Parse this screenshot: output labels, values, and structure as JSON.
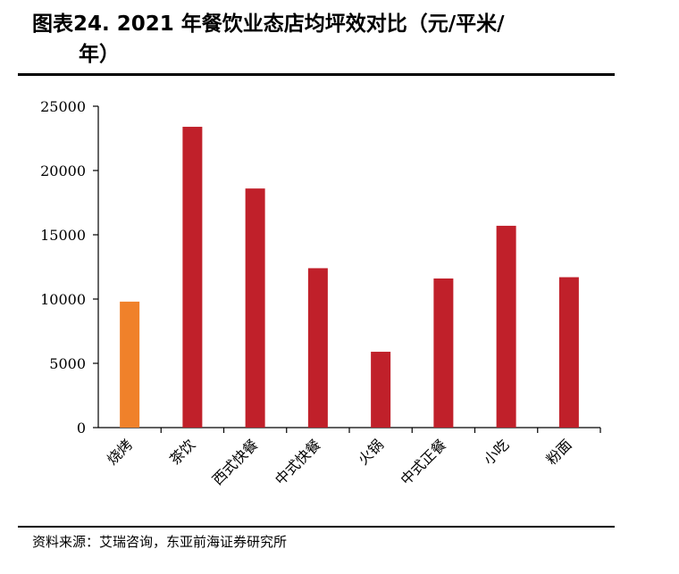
{
  "title_line1": "图表24. 2021 年餐饮业态店均坪效对比（元/平米/",
  "title_line2": "年）",
  "source": "资料来源：艾瑞咨询，东亚前海证券研究所",
  "colors": {
    "highlight": "#f0812a",
    "default": "#c0202a",
    "axis": "#000000"
  },
  "chart_data": {
    "type": "bar",
    "categories": [
      "烧烤",
      "茶饮",
      "西式快餐",
      "中式快餐",
      "火锅",
      "中式正餐",
      "小吃",
      "粉面"
    ],
    "values": [
      9800,
      23400,
      18600,
      12400,
      5900,
      11600,
      15700,
      11700
    ],
    "highlight_index": 0,
    "yticks": [
      0,
      5000,
      10000,
      15000,
      20000,
      25000
    ],
    "ylim": [
      0,
      25000
    ],
    "xlabel": "",
    "ylabel": ""
  }
}
